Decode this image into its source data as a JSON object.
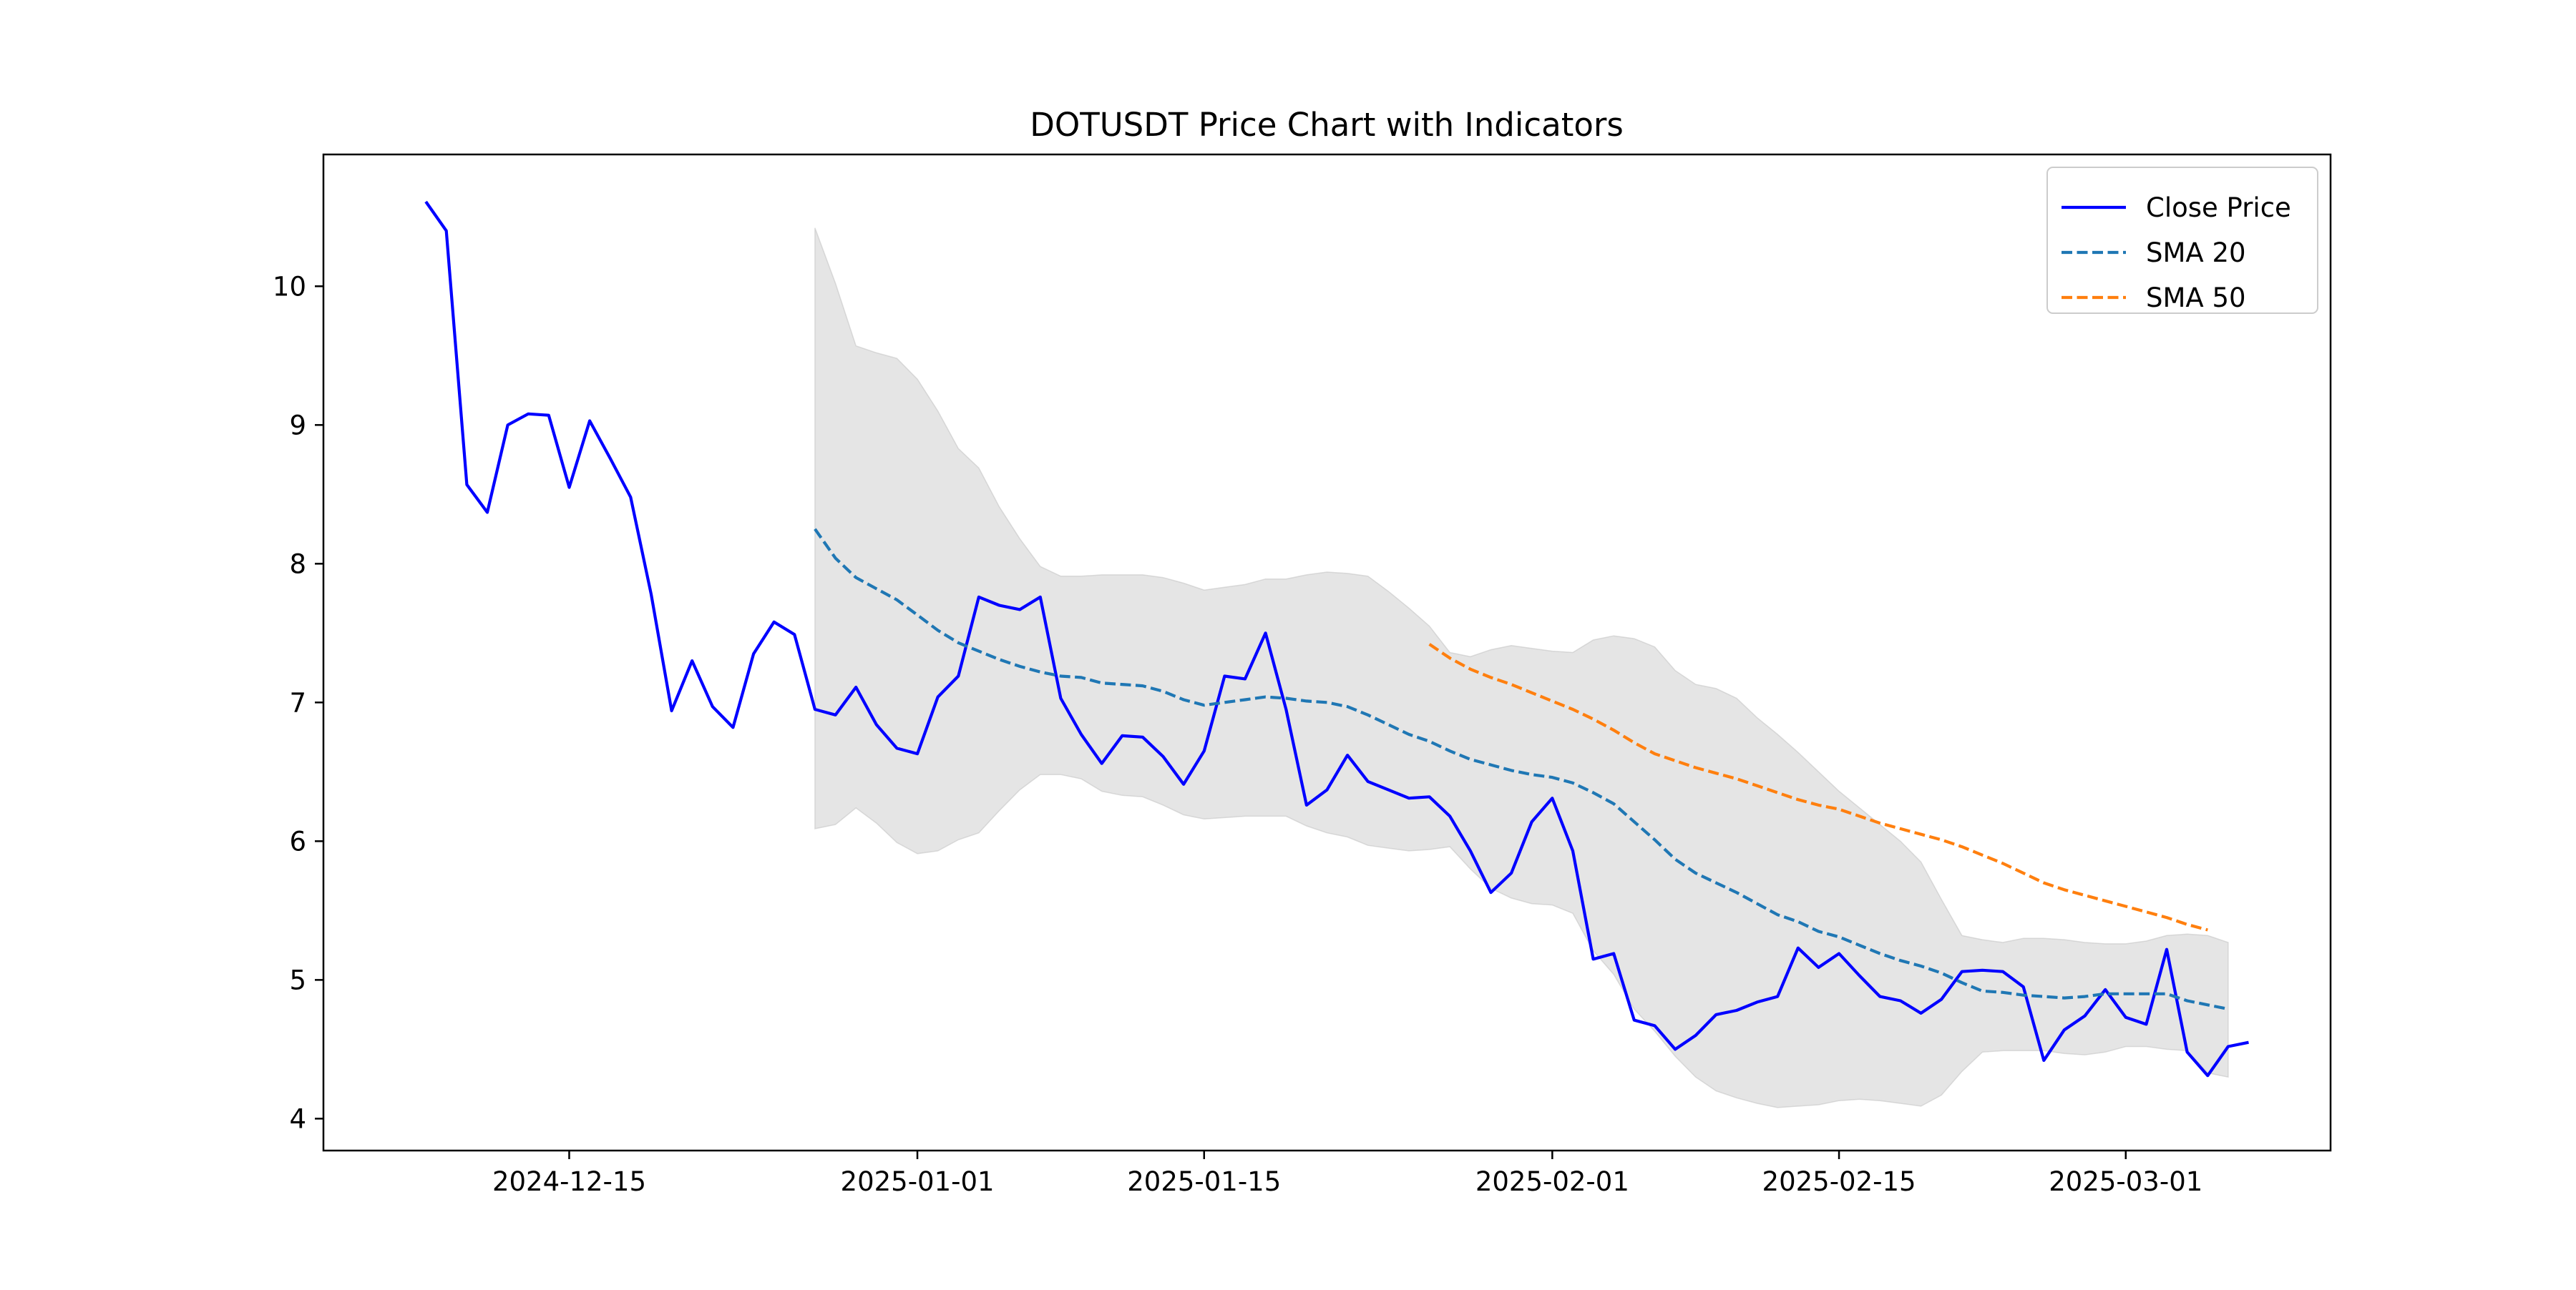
{
  "chart_data": {
    "type": "line",
    "title": "DOTUSDT Price Chart with Indicators",
    "xlabel": "",
    "ylabel": "",
    "x_start": "2024-12-08",
    "x_step_days": 1,
    "xlim": [
      "2024-12-03",
      "2025-03-11"
    ],
    "ylim": [
      3.77,
      10.95
    ],
    "x_ticks": [
      "2024-12-15",
      "2025-01-01",
      "2025-01-15",
      "2025-02-01",
      "2025-02-15",
      "2025-03-01"
    ],
    "y_ticks": [
      4,
      5,
      6,
      7,
      8,
      9,
      10
    ],
    "grid": false,
    "legend_position": "top-right",
    "series": [
      {
        "name": "Close Price",
        "style": "solid",
        "color": "#0000ff",
        "start": "2024-12-08",
        "values": [
          10.61,
          10.4,
          8.57,
          8.37,
          9.0,
          9.08,
          9.07,
          8.55,
          9.03,
          8.76,
          8.48,
          7.78,
          6.94,
          7.3,
          6.97,
          6.82,
          7.35,
          7.58,
          7.49,
          6.95,
          6.91,
          7.11,
          6.84,
          6.67,
          6.63,
          7.04,
          7.19,
          7.76,
          7.7,
          7.67,
          7.76,
          7.03,
          6.77,
          6.56,
          6.76,
          6.75,
          6.61,
          6.41,
          6.65,
          7.19,
          7.17,
          7.5,
          6.95,
          6.26,
          6.37,
          6.62,
          6.43,
          6.37,
          6.31,
          6.32,
          6.18,
          5.93,
          5.63,
          5.77,
          6.14,
          6.31,
          5.93,
          5.15,
          5.19,
          4.71,
          4.67,
          4.5,
          4.6,
          4.75,
          4.78,
          4.84,
          4.88,
          5.23,
          5.09,
          5.19,
          5.03,
          4.88,
          4.85,
          4.76,
          4.86,
          5.06,
          5.07,
          5.06,
          4.95,
          4.42,
          4.64,
          4.74,
          4.93,
          4.73,
          4.68,
          5.22,
          4.48,
          4.31,
          4.52,
          4.55
        ]
      },
      {
        "name": "SMA 20",
        "style": "dashed",
        "color": "#1f77b4",
        "start": "2024-12-27",
        "values": [
          8.25,
          8.04,
          7.9,
          7.82,
          7.74,
          7.63,
          7.52,
          7.43,
          7.37,
          7.31,
          7.26,
          7.22,
          7.19,
          7.18,
          7.14,
          7.13,
          7.12,
          7.08,
          7.02,
          6.98,
          7.0,
          7.02,
          7.04,
          7.03,
          7.01,
          7.0,
          6.97,
          6.91,
          6.84,
          6.77,
          6.72,
          6.65,
          6.59,
          6.55,
          6.51,
          6.48,
          6.46,
          6.42,
          6.35,
          6.27,
          6.14,
          6.01,
          5.87,
          5.77,
          5.7,
          5.63,
          5.55,
          5.47,
          5.42,
          5.35,
          5.31,
          5.25,
          5.19,
          5.14,
          5.1,
          5.05,
          4.98,
          4.92,
          4.91,
          4.89,
          4.88,
          4.87,
          4.88,
          4.9,
          4.9,
          4.9,
          4.9,
          4.85,
          4.82,
          4.79
        ]
      },
      {
        "name": "SMA 50",
        "style": "dashed",
        "color": "#ff7f0e",
        "start": "2025-01-26",
        "values": [
          7.42,
          7.32,
          7.24,
          7.18,
          7.13,
          7.07,
          7.01,
          6.95,
          6.88,
          6.8,
          6.71,
          6.63,
          6.58,
          6.53,
          6.49,
          6.45,
          6.4,
          6.35,
          6.3,
          6.26,
          6.23,
          6.18,
          6.13,
          6.09,
          6.05,
          6.01,
          5.96,
          5.9,
          5.84,
          5.77,
          5.7,
          5.65,
          5.61,
          5.57,
          5.53,
          5.49,
          5.45,
          5.4,
          5.36
        ]
      }
    ],
    "band": {
      "color": "#bebebe",
      "start": "2024-12-27",
      "upper": [
        10.42,
        10.02,
        9.57,
        9.52,
        9.48,
        9.33,
        9.1,
        8.83,
        8.69,
        8.41,
        8.18,
        7.98,
        7.91,
        7.91,
        7.92,
        7.92,
        7.92,
        7.9,
        7.86,
        7.81,
        7.83,
        7.85,
        7.89,
        7.89,
        7.92,
        7.94,
        7.93,
        7.91,
        7.8,
        7.68,
        7.55,
        7.36,
        7.33,
        7.38,
        7.41,
        7.39,
        7.37,
        7.36,
        7.45,
        7.48,
        7.46,
        7.4,
        7.23,
        7.13,
        7.1,
        7.03,
        6.89,
        6.77,
        6.64,
        6.5,
        6.36,
        6.24,
        6.12,
        6.0,
        5.85,
        5.58,
        5.32,
        5.29,
        5.27,
        5.3,
        5.3,
        5.29,
        5.27,
        5.26,
        5.26,
        5.28,
        5.32,
        5.33,
        5.32,
        5.27
      ],
      "lower": [
        6.09,
        6.12,
        6.24,
        6.13,
        5.99,
        5.91,
        5.93,
        6.01,
        6.06,
        6.22,
        6.37,
        6.48,
        6.48,
        6.45,
        6.36,
        6.33,
        6.32,
        6.26,
        6.19,
        6.16,
        6.17,
        6.18,
        6.18,
        6.18,
        6.11,
        6.06,
        6.03,
        5.97,
        5.95,
        5.93,
        5.94,
        5.96,
        5.8,
        5.66,
        5.59,
        5.55,
        5.54,
        5.48,
        5.21,
        5.04,
        4.79,
        4.63,
        4.45,
        4.3,
        4.2,
        4.15,
        4.11,
        4.08,
        4.09,
        4.1,
        4.13,
        4.14,
        4.13,
        4.11,
        4.09,
        4.17,
        4.34,
        4.48,
        4.49,
        4.49,
        4.49,
        4.47,
        4.46,
        4.48,
        4.52,
        4.52,
        4.5,
        4.49,
        4.33,
        4.3
      ]
    }
  }
}
